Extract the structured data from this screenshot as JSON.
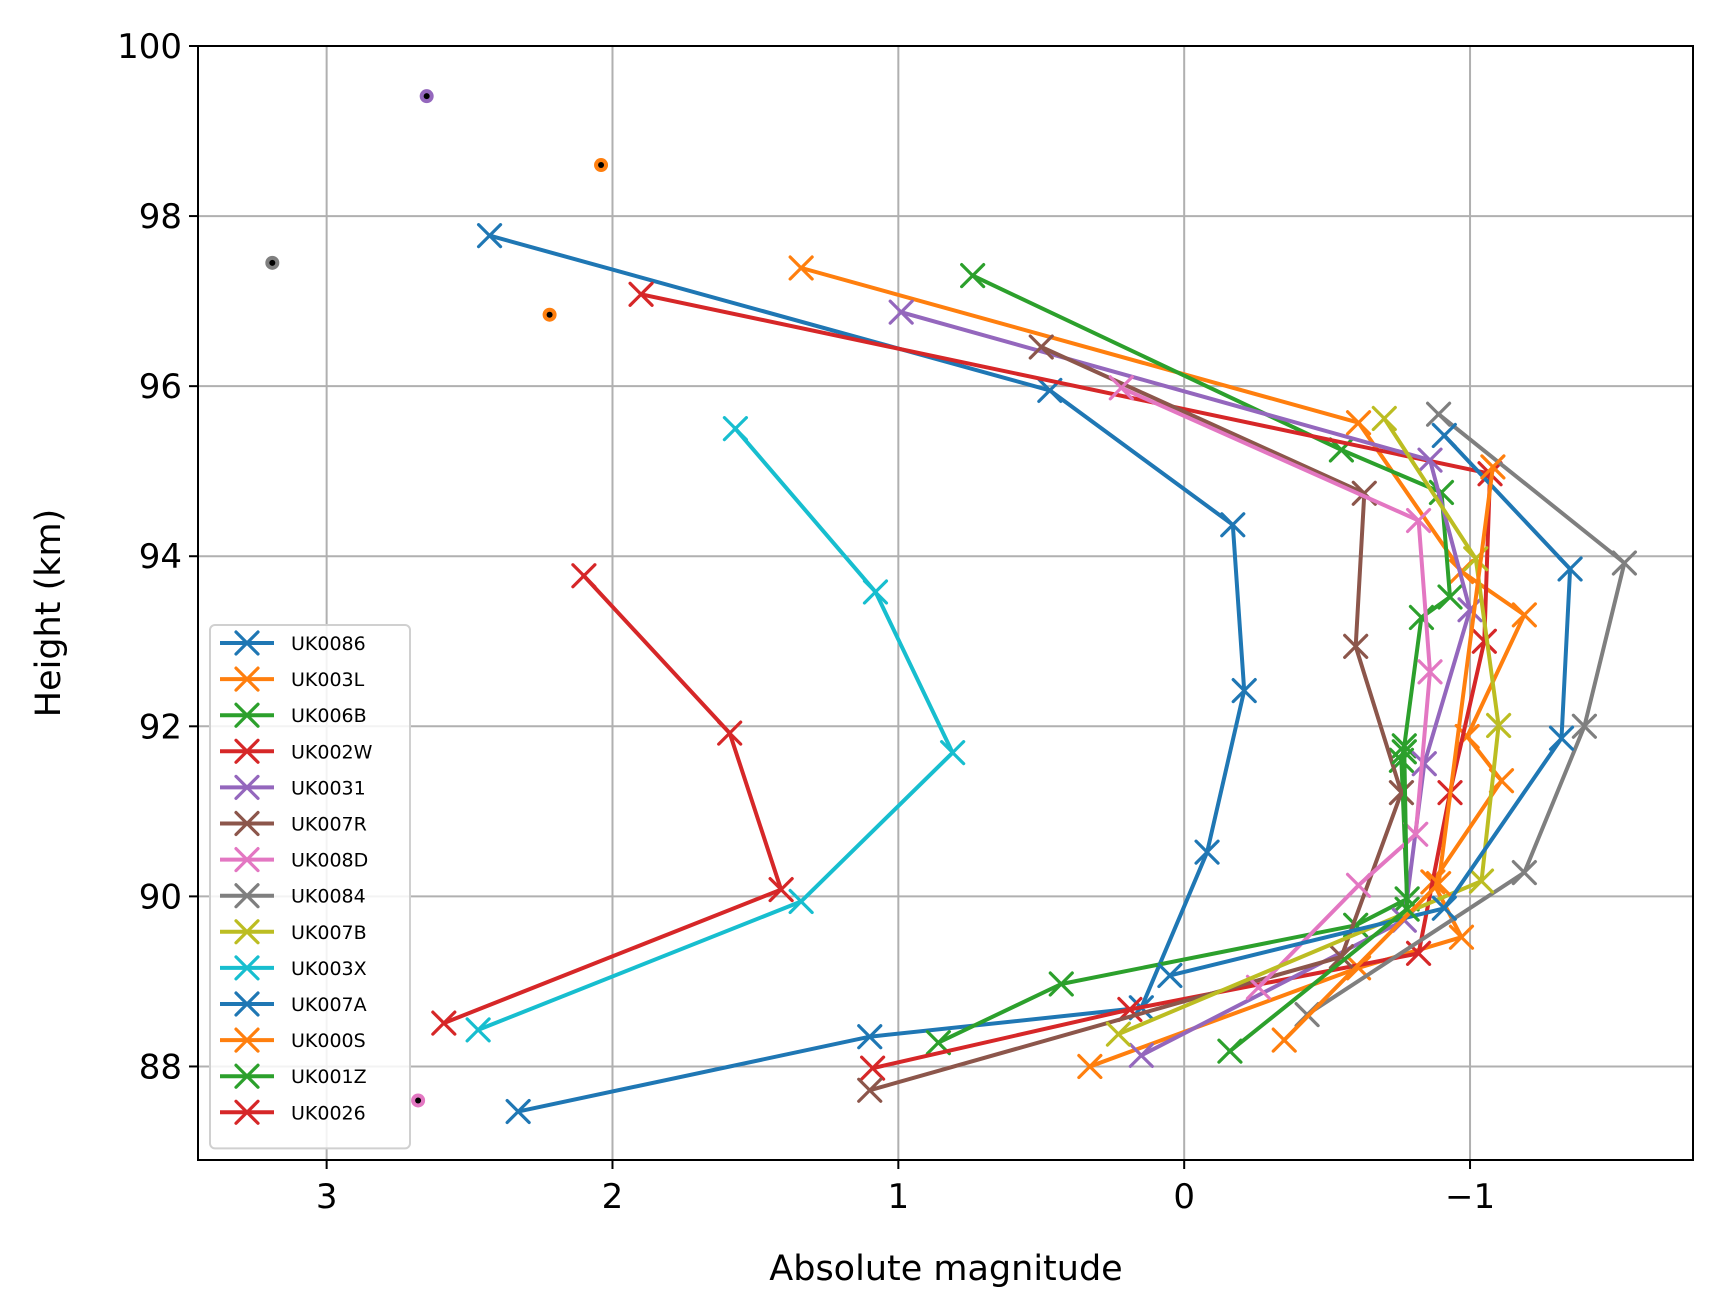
{
  "chart_data": {
    "type": "line",
    "xlabel": "Absolute magnitude",
    "ylabel": "Height (km)",
    "xlim": [
      3.45,
      -1.78
    ],
    "ylim": [
      86.9,
      100.0
    ],
    "x_inverted": true,
    "grid": true,
    "legend_placement": "lower left",
    "xticks": [
      3,
      2,
      1,
      0,
      -1
    ],
    "xtick_labels": [
      "3",
      "2",
      "1",
      "0",
      "−1"
    ],
    "yticks": [
      88,
      90,
      92,
      94,
      96,
      98,
      100
    ],
    "ytick_labels": [
      "88",
      "90",
      "92",
      "94",
      "96",
      "98",
      "100"
    ],
    "series": [
      {
        "name": "UK0086",
        "color": "#1f77b4",
        "points": [
          [
            2.43,
            97.77
          ],
          [
            0.47,
            95.95
          ],
          [
            -0.17,
            94.37
          ],
          [
            -0.21,
            92.42
          ],
          [
            -0.08,
            90.52
          ],
          [
            0.15,
            88.69
          ],
          [
            1.1,
            88.35
          ],
          [
            2.33,
            87.47
          ]
        ]
      },
      {
        "name": "UK003L",
        "color": "#ff7f0e",
        "points": [
          [
            1.34,
            97.39
          ],
          [
            -0.61,
            95.57
          ],
          [
            -0.97,
            93.82
          ],
          [
            -1.19,
            93.31
          ],
          [
            -0.99,
            91.88
          ],
          [
            -1.11,
            91.36
          ],
          [
            -0.87,
            90.17
          ],
          [
            -0.97,
            89.52
          ],
          [
            -0.61,
            89.16
          ],
          [
            0.33,
            88.0
          ]
        ]
      },
      {
        "name": "UK006B",
        "color": "#2ca02c",
        "points": [
          [
            0.74,
            97.3
          ],
          [
            -0.55,
            95.25
          ],
          [
            -0.9,
            94.75
          ],
          [
            -0.93,
            93.52
          ],
          [
            -0.83,
            93.28
          ],
          [
            -0.77,
            91.77
          ],
          [
            -0.76,
            91.6
          ],
          [
            -0.78,
            89.97
          ],
          [
            -0.6,
            89.66
          ],
          [
            0.43,
            88.97
          ],
          [
            0.86,
            88.28
          ]
        ]
      },
      {
        "name": "UK002W",
        "color": "#d62728",
        "points": [
          [
            1.9,
            97.08
          ],
          [
            -1.07,
            94.97
          ],
          [
            -1.05,
            93.0
          ],
          [
            -0.93,
            91.22
          ],
          [
            -0.82,
            89.33
          ],
          [
            0.19,
            88.67
          ],
          [
            1.09,
            87.98
          ]
        ]
      },
      {
        "name": "UK0031",
        "color": "#9467bd",
        "points": [
          [
            0.99,
            96.87
          ],
          [
            -0.86,
            95.13
          ],
          [
            -1.0,
            93.37
          ],
          [
            -0.84,
            91.56
          ],
          [
            -0.77,
            89.72
          ],
          [
            0.15,
            88.13
          ]
        ]
      },
      {
        "name": "UK007R",
        "color": "#8c564b",
        "points": [
          [
            0.5,
            96.46
          ],
          [
            -0.63,
            94.74
          ],
          [
            -0.6,
            92.94
          ],
          [
            -0.76,
            91.22
          ],
          [
            -0.55,
            89.29
          ],
          [
            1.1,
            87.72
          ]
        ]
      },
      {
        "name": "UK008D",
        "color": "#e377c2",
        "points": [
          [
            0.22,
            95.98
          ],
          [
            -0.82,
            94.42
          ],
          [
            -0.86,
            92.64
          ],
          [
            -0.81,
            90.73
          ],
          [
            -0.61,
            90.13
          ],
          [
            -0.26,
            88.93
          ]
        ]
      },
      {
        "name": "UK0084",
        "color": "#7f7f7f",
        "points": [
          [
            -0.89,
            95.67
          ],
          [
            -1.54,
            93.92
          ],
          [
            -1.4,
            92.0
          ],
          [
            -1.19,
            90.28
          ],
          [
            -0.43,
            88.61
          ]
        ]
      },
      {
        "name": "UK007B",
        "color": "#bcbd22",
        "points": [
          [
            -0.7,
            95.62
          ],
          [
            -1.02,
            93.97
          ],
          [
            -1.1,
            92.01
          ],
          [
            -1.04,
            90.18
          ],
          [
            0.23,
            88.38
          ]
        ]
      },
      {
        "name": "UK003X",
        "color": "#17becf",
        "points": [
          [
            1.57,
            95.5
          ],
          [
            1.08,
            93.58
          ],
          [
            0.81,
            91.69
          ],
          [
            1.34,
            89.94
          ],
          [
            2.47,
            88.43
          ]
        ]
      },
      {
        "name": "UK007A",
        "color": "#1f77b4",
        "points": [
          [
            -0.91,
            95.42
          ],
          [
            -1.35,
            93.85
          ],
          [
            -1.32,
            91.86
          ],
          [
            -0.91,
            89.86
          ],
          [
            0.05,
            89.07
          ]
        ]
      },
      {
        "name": "UK000S",
        "color": "#ff7f0e",
        "points": [
          [
            -1.08,
            95.05
          ],
          [
            -0.89,
            90.15
          ],
          [
            -0.35,
            88.31
          ]
        ]
      },
      {
        "name": "UK001Z",
        "color": "#2ca02c",
        "points": [
          [
            -0.77,
            91.7
          ],
          [
            -0.78,
            89.85
          ],
          [
            -0.16,
            88.18
          ]
        ]
      },
      {
        "name": "UK0026",
        "color": "#d62728",
        "points": [
          [
            2.1,
            93.77
          ],
          [
            1.59,
            91.92
          ],
          [
            1.41,
            90.08
          ],
          [
            2.59,
            88.51
          ]
        ]
      }
    ],
    "isolated_points": [
      {
        "x": 2.65,
        "y": 99.41,
        "color": "#9467bd"
      },
      {
        "x": 2.04,
        "y": 98.6,
        "color": "#ff7f0e"
      },
      {
        "x": 3.19,
        "y": 97.45,
        "color": "#7f7f7f"
      },
      {
        "x": 2.22,
        "y": 96.84,
        "color": "#ff7f0e"
      },
      {
        "x": 2.68,
        "y": 87.6,
        "color": "#e377c2"
      }
    ]
  }
}
